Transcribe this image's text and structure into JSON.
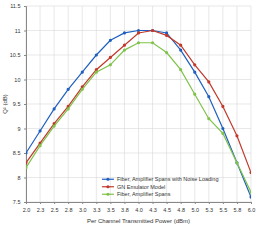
{
  "chart_data": {
    "type": "line",
    "x_label": "Per Channel Transmitted Power (dBm)",
    "y_label": "Q² (dB)",
    "x": [
      2.0,
      2.25,
      2.5,
      2.75,
      3.0,
      3.25,
      3.5,
      3.75,
      4.0,
      4.25,
      4.5,
      4.75,
      5.0,
      5.25,
      5.5,
      5.75,
      6.0
    ],
    "series": [
      {
        "name": "Fiber, Amplifier Spans with Noise Loading",
        "color": "#1f5fbf",
        "marker": "circle",
        "values": [
          8.5,
          8.95,
          9.4,
          9.8,
          10.15,
          10.5,
          10.8,
          10.95,
          11.0,
          11.0,
          10.95,
          10.6,
          10.15,
          9.65,
          9.0,
          8.3,
          7.6
        ]
      },
      {
        "name": "GN Emulator Model",
        "color": "#c0392b",
        "marker": "circle",
        "values": [
          8.3,
          8.7,
          9.1,
          9.45,
          9.85,
          10.2,
          10.45,
          10.7,
          10.95,
          11.0,
          10.9,
          10.7,
          10.3,
          9.95,
          9.45,
          8.85,
          8.1
        ]
      },
      {
        "name": "Fiber, Amplifier Spans",
        "color": "#7fc34a",
        "marker": "circle",
        "values": [
          8.2,
          8.65,
          9.05,
          9.4,
          9.8,
          10.15,
          10.3,
          10.6,
          10.75,
          10.75,
          10.55,
          10.2,
          9.7,
          9.2,
          8.9,
          8.3,
          7.7
        ]
      }
    ],
    "xlim": [
      2.0,
      6.0
    ],
    "xticks": [
      {
        "value": 2.0,
        "label": "2.0"
      },
      {
        "value": 2.25,
        "label": "2.3"
      },
      {
        "value": 2.5,
        "label": "2.5"
      },
      {
        "value": 2.75,
        "label": "2.8"
      },
      {
        "value": 3.0,
        "label": "3.0"
      },
      {
        "value": 3.25,
        "label": "3.3"
      },
      {
        "value": 3.5,
        "label": "3.5"
      },
      {
        "value": 3.75,
        "label": "3.8"
      },
      {
        "value": 4.0,
        "label": "4.0"
      },
      {
        "value": 4.25,
        "label": "4.3"
      },
      {
        "value": 4.5,
        "label": "4.5"
      },
      {
        "value": 4.75,
        "label": "4.8"
      },
      {
        "value": 5.0,
        "label": "5.0"
      },
      {
        "value": 5.25,
        "label": "5.3"
      },
      {
        "value": 5.5,
        "label": "5.5"
      },
      {
        "value": 5.75,
        "label": "5.8"
      },
      {
        "value": 6.0,
        "label": "6.0"
      }
    ],
    "ylim": [
      7.5,
      11.5
    ],
    "yticks": [
      7.5,
      8,
      8.5,
      9,
      9.5,
      10,
      10.5,
      11,
      11.5
    ],
    "grid": true,
    "legend": "bottom"
  }
}
